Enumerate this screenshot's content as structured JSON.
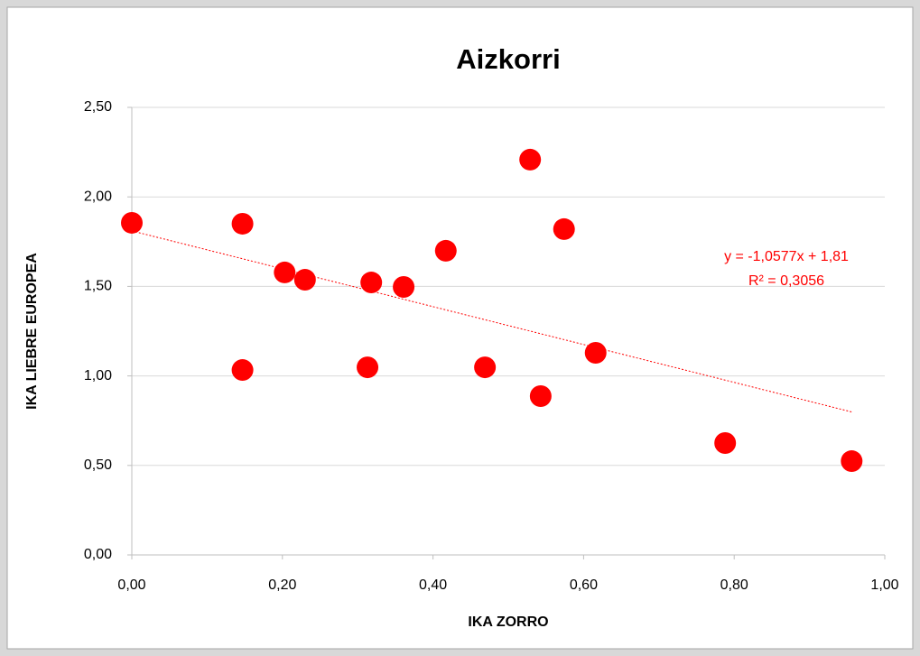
{
  "chart_data": {
    "type": "scatter",
    "title": "Aizkorri",
    "x_label": "IKA ZORRO",
    "y_label": "IKA LIEBRE EUROPEA",
    "color": "#ff0000",
    "x": [
      0.0,
      0.147,
      0.147,
      0.203,
      0.23,
      0.313,
      0.318,
      0.361,
      0.417,
      0.469,
      0.529,
      0.543,
      0.574,
      0.616,
      0.788,
      0.956
    ],
    "values": [
      1.855,
      1.85,
      1.033,
      1.578,
      1.537,
      1.048,
      1.522,
      1.497,
      1.699,
      1.048,
      2.208,
      0.887,
      1.82,
      1.129,
      0.625,
      0.524
    ],
    "xlim": [
      0,
      1
    ],
    "ylim": [
      0,
      2.5
    ],
    "xticks": [
      {
        "value": 0,
        "label": "0,00"
      },
      {
        "value": 0.2,
        "label": "0,20"
      },
      {
        "value": 0.4,
        "label": "0,40"
      },
      {
        "value": 0.6,
        "label": "0,60"
      },
      {
        "value": 0.8,
        "label": "0,80"
      },
      {
        "value": 1,
        "label": "1,00"
      }
    ],
    "yticks": [
      {
        "value": 0,
        "label": "0,00"
      },
      {
        "value": 0.5,
        "label": "0,50"
      },
      {
        "value": 1,
        "label": "1,00"
      },
      {
        "value": 1.5,
        "label": "1,50"
      },
      {
        "value": 2,
        "label": "2,00"
      },
      {
        "value": 2.5,
        "label": "2,50"
      }
    ],
    "grid": true,
    "trendline": {
      "equation": "y = -1,0577x + 1,81",
      "r2_label": "R² = 0,3056",
      "slope": -1.0577,
      "intercept": 1.81,
      "color": "#ff0000"
    }
  }
}
